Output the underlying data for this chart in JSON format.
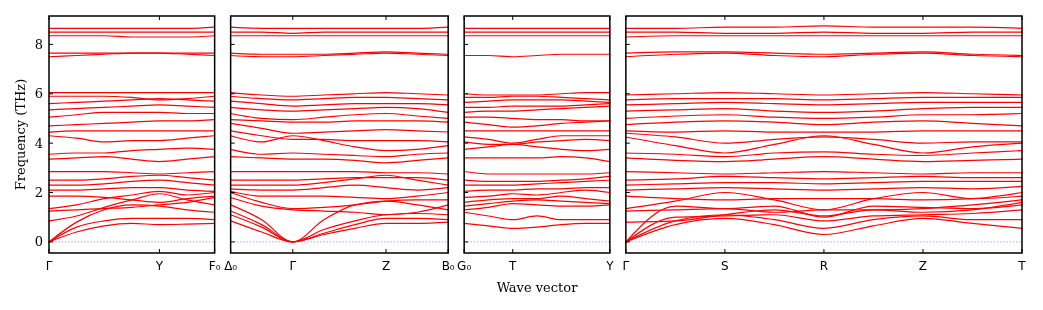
{
  "chart_data": [
    {
      "type": "line",
      "ylabel": "Frequency (THz)",
      "ylim": [
        -0.45,
        9.15
      ],
      "yticks": [
        0,
        2,
        4,
        6,
        8
      ],
      "categories": [
        "Γ",
        null,
        null,
        null,
        "Y",
        null,
        "F₀"
      ],
      "ref_lines": [
        {
          "axis": "y",
          "value": 0,
          "color": "#7777ff",
          "line_style": "dotted"
        }
      ],
      "series": [
        {
          "color": "#ff0000",
          "values": [
            0,
            0.6,
            0.85,
            0.95,
            0.95,
            0.95,
            0.9
          ]
        },
        {
          "color": "#ff0000",
          "values": [
            0,
            0.4,
            0.65,
            0.75,
            0.7,
            0.72,
            0.75
          ]
        },
        {
          "color": "#ff0000",
          "values": [
            0,
            0.8,
            1.3,
            1.5,
            1.45,
            1.3,
            1.2
          ]
        },
        {
          "color": "#ff0000",
          "values": [
            0.85,
            1.05,
            1.4,
            1.7,
            1.95,
            1.7,
            1.5
          ]
        },
        {
          "color": "#ff0000",
          "values": [
            1.25,
            1.3,
            1.35,
            1.4,
            1.5,
            1.6,
            1.8
          ]
        },
        {
          "color": "#ff0000",
          "values": [
            1.35,
            1.5,
            1.75,
            1.9,
            2.05,
            1.9,
            2.0
          ]
        },
        {
          "color": "#ff0000",
          "values": [
            1.85,
            1.85,
            1.8,
            1.7,
            1.6,
            1.75,
            1.85
          ]
        },
        {
          "color": "#ff0000",
          "values": [
            2.1,
            2.1,
            2.15,
            2.2,
            2.2,
            2.1,
            2.05
          ]
        },
        {
          "color": "#ff0000",
          "values": [
            2.3,
            2.3,
            2.35,
            2.45,
            2.5,
            2.4,
            2.3
          ]
        },
        {
          "color": "#ff0000",
          "values": [
            2.5,
            2.5,
            2.55,
            2.65,
            2.7,
            2.6,
            2.5
          ]
        },
        {
          "color": "#ff0000",
          "values": [
            2.85,
            2.85,
            2.85,
            2.8,
            2.75,
            2.8,
            2.85
          ]
        },
        {
          "color": "#ff0000",
          "values": [
            3.35,
            3.4,
            3.45,
            3.35,
            3.25,
            3.35,
            3.45
          ]
        },
        {
          "color": "#ff0000",
          "values": [
            3.55,
            3.6,
            3.6,
            3.7,
            3.75,
            3.8,
            3.75
          ]
        },
        {
          "color": "#ff0000",
          "values": [
            4.3,
            4.2,
            4.05,
            4.1,
            4.1,
            4.2,
            4.3
          ]
        },
        {
          "color": "#ff0000",
          "values": [
            4.45,
            4.5,
            4.5,
            4.5,
            4.5,
            4.5,
            4.5
          ]
        },
        {
          "color": "#ff0000",
          "values": [
            4.7,
            4.75,
            4.8,
            4.85,
            4.9,
            4.9,
            4.95
          ]
        },
        {
          "color": "#ff0000",
          "values": [
            5.05,
            5.15,
            5.25,
            5.25,
            5.25,
            5.2,
            5.2
          ]
        },
        {
          "color": "#ff0000",
          "values": [
            5.35,
            5.4,
            5.45,
            5.5,
            5.55,
            5.5,
            5.45
          ]
        },
        {
          "color": "#ff0000",
          "values": [
            5.6,
            5.65,
            5.7,
            5.75,
            5.8,
            5.75,
            5.7
          ]
        },
        {
          "color": "#ff0000",
          "values": [
            5.9,
            5.9,
            5.9,
            5.85,
            5.75,
            5.8,
            5.9
          ]
        },
        {
          "color": "#ff0000",
          "values": [
            6.05,
            6.05,
            6.05,
            6.05,
            6.05,
            6.05,
            6.05
          ]
        },
        {
          "color": "#ff0000",
          "values": [
            7.5,
            7.55,
            7.6,
            7.65,
            7.65,
            7.6,
            7.55
          ]
        },
        {
          "color": "#ff0000",
          "values": [
            7.65,
            7.65,
            7.65,
            7.65,
            7.65,
            7.65,
            7.65
          ]
        },
        {
          "color": "#ff0000",
          "values": [
            8.35,
            8.35,
            8.35,
            8.3,
            8.3,
            8.3,
            8.35
          ]
        },
        {
          "color": "#ff0000",
          "values": [
            8.5,
            8.5,
            8.5,
            8.5,
            8.5,
            8.5,
            8.5
          ]
        },
        {
          "color": "#ff0000",
          "values": [
            8.65,
            8.65,
            8.65,
            8.65,
            8.65,
            8.65,
            8.7
          ]
        }
      ]
    },
    {
      "type": "line",
      "ylim": [
        -0.45,
        9.15
      ],
      "yticks": [
        0,
        2,
        4,
        6,
        8
      ],
      "tick_labels": "x",
      "categories": [
        "Δ₀",
        null,
        "Γ",
        null,
        null,
        "Z",
        null,
        "B₀"
      ],
      "ref_lines": [
        {
          "axis": "y",
          "value": 0,
          "color": "#7777ff",
          "line_style": "dotted"
        }
      ],
      "series": [
        {
          "color": "#ff0000",
          "values": [
            0.85,
            0.4,
            0,
            0.3,
            0.55,
            0.75,
            0.75,
            0.8
          ]
        },
        {
          "color": "#ff0000",
          "values": [
            1.1,
            0.6,
            0,
            0.35,
            0.7,
            0.95,
            0.95,
            0.9
          ]
        },
        {
          "color": "#ff0000",
          "values": [
            1.25,
            0.7,
            0,
            0.5,
            0.85,
            1.1,
            1.15,
            1.1
          ]
        },
        {
          "color": "#ff0000",
          "values": [
            1.5,
            0.9,
            0,
            0.9,
            1.5,
            1.65,
            1.5,
            1.3
          ]
        },
        {
          "color": "#ff0000",
          "values": [
            1.8,
            1.45,
            1.3,
            1.25,
            1.2,
            1.1,
            1.2,
            1.5
          ]
        },
        {
          "color": "#ff0000",
          "values": [
            2.0,
            1.6,
            1.35,
            1.4,
            1.5,
            1.65,
            1.7,
            1.7
          ]
        },
        {
          "color": "#ff0000",
          "values": [
            2.05,
            1.85,
            1.85,
            1.85,
            1.8,
            1.75,
            1.85,
            2.0
          ]
        },
        {
          "color": "#ff0000",
          "values": [
            2.15,
            2.1,
            2.1,
            2.2,
            2.3,
            2.2,
            2.1,
            2.2
          ]
        },
        {
          "color": "#ff0000",
          "values": [
            2.3,
            2.3,
            2.3,
            2.4,
            2.55,
            2.7,
            2.5,
            2.3
          ]
        },
        {
          "color": "#ff0000",
          "values": [
            2.5,
            2.5,
            2.5,
            2.55,
            2.6,
            2.6,
            2.6,
            2.5
          ]
        },
        {
          "color": "#ff0000",
          "values": [
            2.85,
            2.85,
            2.85,
            2.85,
            2.85,
            2.8,
            2.8,
            2.75
          ]
        },
        {
          "color": "#ff0000",
          "values": [
            3.45,
            3.4,
            3.35,
            3.35,
            3.3,
            3.2,
            3.3,
            3.4
          ]
        },
        {
          "color": "#ff0000",
          "values": [
            3.75,
            3.55,
            3.6,
            3.55,
            3.5,
            3.45,
            3.55,
            3.6
          ]
        },
        {
          "color": "#ff0000",
          "values": [
            4.3,
            4.05,
            4.3,
            4.1,
            3.85,
            3.7,
            3.75,
            3.9
          ]
        },
        {
          "color": "#ff0000",
          "values": [
            4.5,
            4.3,
            4.15,
            4.15,
            4.1,
            4.1,
            4.1,
            4.05
          ]
        },
        {
          "color": "#ff0000",
          "values": [
            4.8,
            4.6,
            4.4,
            4.45,
            4.5,
            4.55,
            4.5,
            4.45
          ]
        },
        {
          "color": "#ff0000",
          "values": [
            4.95,
            4.9,
            4.85,
            4.85,
            4.9,
            4.9,
            4.9,
            4.85
          ]
        },
        {
          "color": "#ff0000",
          "values": [
            5.2,
            5.0,
            4.95,
            5.05,
            5.15,
            5.2,
            5.1,
            5.0
          ]
        },
        {
          "color": "#ff0000",
          "values": [
            5.45,
            5.35,
            5.3,
            5.35,
            5.4,
            5.45,
            5.4,
            5.25
          ]
        },
        {
          "color": "#ff0000",
          "values": [
            5.7,
            5.6,
            5.5,
            5.55,
            5.6,
            5.6,
            5.6,
            5.55
          ]
        },
        {
          "color": "#ff0000",
          "values": [
            5.9,
            5.8,
            5.75,
            5.8,
            5.85,
            5.85,
            5.8,
            5.75
          ]
        },
        {
          "color": "#ff0000",
          "values": [
            6.05,
            5.95,
            5.9,
            5.95,
            6.0,
            6.05,
            6.0,
            5.95
          ]
        },
        {
          "color": "#ff0000",
          "values": [
            7.55,
            7.5,
            7.5,
            7.55,
            7.6,
            7.65,
            7.6,
            7.55
          ]
        },
        {
          "color": "#ff0000",
          "values": [
            7.65,
            7.6,
            7.6,
            7.6,
            7.65,
            7.7,
            7.65,
            7.6
          ]
        },
        {
          "color": "#ff0000",
          "values": [
            8.35,
            8.35,
            8.35,
            8.35,
            8.35,
            8.35,
            8.35,
            8.35
          ]
        },
        {
          "color": "#ff0000",
          "values": [
            8.5,
            8.5,
            8.45,
            8.5,
            8.5,
            8.5,
            8.5,
            8.5
          ]
        },
        {
          "color": "#ff0000",
          "values": [
            8.7,
            8.65,
            8.65,
            8.65,
            8.65,
            8.65,
            8.65,
            8.7
          ]
        }
      ]
    },
    {
      "type": "line",
      "xlabel": "Wave vector",
      "ylim": [
        -0.45,
        9.15
      ],
      "yticks": [
        0,
        2,
        4,
        6,
        8
      ],
      "tick_labels": "x",
      "categories": [
        "G₀",
        null,
        "T",
        null,
        null,
        null,
        "Y"
      ],
      "ref_lines": [
        {
          "axis": "y",
          "value": 0,
          "color": "#7777ff",
          "line_style": "dotted"
        }
      ],
      "series": [
        {
          "color": "#ff0000",
          "values": [
            0.75,
            0.65,
            0.55,
            0.6,
            0.7,
            0.75,
            0.75
          ]
        },
        {
          "color": "#ff0000",
          "values": [
            1.2,
            1.05,
            0.9,
            1.05,
            0.9,
            0.9,
            0.9
          ]
        },
        {
          "color": "#ff0000",
          "values": [
            1.3,
            1.4,
            1.55,
            1.5,
            1.45,
            1.45,
            1.5
          ]
        },
        {
          "color": "#ff0000",
          "values": [
            1.45,
            1.55,
            1.65,
            1.7,
            1.65,
            1.6,
            1.55
          ]
        },
        {
          "color": "#ff0000",
          "values": [
            1.6,
            1.7,
            1.75,
            1.75,
            1.85,
            1.75,
            1.65
          ]
        },
        {
          "color": "#ff0000",
          "values": [
            1.8,
            1.85,
            1.95,
            1.9,
            2.0,
            2.1,
            2.0
          ]
        },
        {
          "color": "#ff0000",
          "values": [
            2.05,
            2.1,
            2.1,
            2.15,
            2.15,
            2.2,
            2.2
          ]
        },
        {
          "color": "#ff0000",
          "values": [
            2.3,
            2.3,
            2.3,
            2.35,
            2.4,
            2.45,
            2.5
          ]
        },
        {
          "color": "#ff0000",
          "values": [
            2.5,
            2.45,
            2.45,
            2.45,
            2.5,
            2.55,
            2.65
          ]
        },
        {
          "color": "#ff0000",
          "values": [
            2.85,
            2.75,
            2.75,
            2.75,
            2.75,
            2.75,
            2.8
          ]
        },
        {
          "color": "#ff0000",
          "values": [
            3.4,
            3.4,
            3.4,
            3.4,
            3.45,
            3.4,
            3.25
          ]
        },
        {
          "color": "#ff0000",
          "values": [
            3.75,
            3.85,
            3.95,
            3.85,
            3.75,
            3.7,
            3.75
          ]
        },
        {
          "color": "#ff0000",
          "values": [
            4.05,
            3.95,
            3.95,
            4.05,
            4.1,
            4.15,
            4.1
          ]
        },
        {
          "color": "#ff0000",
          "values": [
            4.25,
            4.15,
            4.0,
            4.15,
            4.3,
            4.3,
            4.3
          ]
        },
        {
          "color": "#ff0000",
          "values": [
            4.5,
            4.5,
            4.5,
            4.5,
            4.5,
            4.5,
            4.5
          ]
        },
        {
          "color": "#ff0000",
          "values": [
            4.85,
            4.75,
            4.65,
            4.7,
            4.8,
            4.85,
            4.9
          ]
        },
        {
          "color": "#ff0000",
          "values": [
            5.05,
            5.05,
            5.0,
            4.95,
            4.95,
            4.9,
            4.9
          ]
        },
        {
          "color": "#ff0000",
          "values": [
            5.25,
            5.3,
            5.3,
            5.35,
            5.4,
            5.45,
            5.5
          ]
        },
        {
          "color": "#ff0000",
          "values": [
            5.45,
            5.45,
            5.5,
            5.5,
            5.5,
            5.55,
            5.6
          ]
        },
        {
          "color": "#ff0000",
          "values": [
            5.65,
            5.7,
            5.75,
            5.75,
            5.75,
            5.7,
            5.65
          ]
        },
        {
          "color": "#ff0000",
          "values": [
            5.85,
            5.85,
            5.9,
            5.9,
            5.85,
            5.8,
            5.75
          ]
        },
        {
          "color": "#ff0000",
          "values": [
            6.0,
            5.95,
            5.95,
            5.95,
            6.0,
            6.05,
            6.05
          ]
        },
        {
          "color": "#ff0000",
          "values": [
            7.55,
            7.55,
            7.5,
            7.55,
            7.6,
            7.6,
            7.6
          ]
        },
        {
          "color": "#ff0000",
          "values": [
            8.35,
            8.35,
            8.35,
            8.35,
            8.35,
            8.35,
            8.35
          ]
        },
        {
          "color": "#ff0000",
          "values": [
            8.5,
            8.5,
            8.5,
            8.5,
            8.5,
            8.5,
            8.5
          ]
        },
        {
          "color": "#ff0000",
          "values": [
            8.65,
            8.65,
            8.65,
            8.65,
            8.65,
            8.65,
            8.65
          ]
        }
      ]
    },
    {
      "type": "line",
      "ylim": [
        -0.45,
        9.15
      ],
      "yticks": [
        0,
        2,
        4,
        6,
        8
      ],
      "tick_labels": "x",
      "categories": [
        "Γ",
        null,
        "S",
        null,
        "R",
        null,
        "Z",
        null,
        "T"
      ],
      "ref_lines": [
        {
          "axis": "y",
          "value": 0,
          "color": "#7777ff",
          "line_style": "dotted"
        }
      ],
      "series": [
        {
          "color": "#ff0000",
          "values": [
            0,
            0.7,
            0.95,
            0.7,
            0.3,
            0.65,
            0.95,
            0.75,
            0.55
          ]
        },
        {
          "color": "#ff0000",
          "values": [
            0,
            0.85,
            1.1,
            0.9,
            0.55,
            0.9,
            1.05,
            0.9,
            0.9
          ]
        },
        {
          "color": "#ff0000",
          "values": [
            0,
            1.0,
            1.05,
            1.1,
            0.85,
            1.05,
            1.1,
            1.15,
            1.3
          ]
        },
        {
          "color": "#ff0000",
          "values": [
            0,
            1.45,
            1.35,
            1.45,
            1.0,
            1.45,
            1.4,
            1.35,
            1.5
          ]
        },
        {
          "color": "#ff0000",
          "values": [
            0.8,
            0.85,
            1.1,
            1.3,
            1.05,
            1.3,
            1.2,
            1.3,
            1.6
          ]
        },
        {
          "color": "#ff0000",
          "values": [
            1.25,
            1.3,
            1.35,
            1.2,
            1.3,
            1.3,
            1.35,
            1.5,
            1.7
          ]
        },
        {
          "color": "#ff0000",
          "values": [
            1.35,
            1.65,
            2.0,
            1.7,
            1.3,
            1.75,
            2.0,
            1.75,
            1.85
          ]
        },
        {
          "color": "#ff0000",
          "values": [
            1.85,
            1.75,
            1.7,
            1.75,
            1.75,
            1.75,
            1.7,
            1.75,
            2.0
          ]
        },
        {
          "color": "#ff0000",
          "values": [
            2.1,
            2.15,
            2.2,
            2.15,
            2.1,
            2.15,
            2.2,
            2.15,
            2.25
          ]
        },
        {
          "color": "#ff0000",
          "values": [
            2.3,
            2.35,
            2.4,
            2.4,
            2.35,
            2.4,
            2.45,
            2.45,
            2.45
          ]
        },
        {
          "color": "#ff0000",
          "values": [
            2.5,
            2.55,
            2.65,
            2.6,
            2.55,
            2.6,
            2.65,
            2.6,
            2.6
          ]
        },
        {
          "color": "#ff0000",
          "values": [
            2.85,
            2.8,
            2.75,
            2.8,
            2.85,
            2.8,
            2.75,
            2.8,
            2.8
          ]
        },
        {
          "color": "#ff0000",
          "values": [
            3.4,
            3.3,
            3.25,
            3.35,
            3.45,
            3.35,
            3.25,
            3.3,
            3.35
          ]
        },
        {
          "color": "#ff0000",
          "values": [
            3.6,
            3.55,
            3.45,
            3.6,
            3.65,
            3.55,
            3.5,
            3.6,
            3.7
          ]
        },
        {
          "color": "#ff0000",
          "values": [
            4.25,
            3.9,
            3.6,
            3.95,
            4.3,
            3.95,
            3.6,
            3.85,
            4.0
          ]
        },
        {
          "color": "#ff0000",
          "values": [
            4.4,
            4.25,
            4.0,
            4.15,
            4.25,
            4.15,
            4.0,
            4.05,
            4.05
          ]
        },
        {
          "color": "#ff0000",
          "values": [
            4.5,
            4.45,
            4.5,
            4.45,
            4.45,
            4.45,
            4.5,
            4.5,
            4.5
          ]
        },
        {
          "color": "#ff0000",
          "values": [
            4.75,
            4.85,
            4.9,
            4.85,
            4.75,
            4.85,
            4.9,
            4.8,
            4.7
          ]
        },
        {
          "color": "#ff0000",
          "values": [
            5.0,
            5.1,
            5.15,
            5.05,
            5.0,
            5.05,
            5.15,
            5.15,
            5.2
          ]
        },
        {
          "color": "#ff0000",
          "values": [
            5.3,
            5.35,
            5.4,
            5.3,
            5.25,
            5.3,
            5.4,
            5.45,
            5.45
          ]
        },
        {
          "color": "#ff0000",
          "values": [
            5.55,
            5.6,
            5.65,
            5.6,
            5.55,
            5.6,
            5.65,
            5.65,
            5.65
          ]
        },
        {
          "color": "#ff0000",
          "values": [
            5.75,
            5.8,
            5.8,
            5.8,
            5.75,
            5.8,
            5.85,
            5.85,
            5.85
          ]
        },
        {
          "color": "#ff0000",
          "values": [
            5.95,
            6.0,
            6.05,
            6.0,
            5.95,
            6.0,
            6.05,
            6.0,
            5.95
          ]
        },
        {
          "color": "#ff0000",
          "values": [
            7.5,
            7.6,
            7.65,
            7.55,
            7.5,
            7.6,
            7.65,
            7.55,
            7.5
          ]
        },
        {
          "color": "#ff0000",
          "values": [
            7.65,
            7.7,
            7.7,
            7.65,
            7.6,
            7.65,
            7.7,
            7.6,
            7.55
          ]
        },
        {
          "color": "#ff0000",
          "values": [
            8.3,
            8.35,
            8.35,
            8.35,
            8.35,
            8.35,
            8.35,
            8.35,
            8.35
          ]
        },
        {
          "color": "#ff0000",
          "values": [
            8.5,
            8.5,
            8.45,
            8.45,
            8.5,
            8.45,
            8.45,
            8.5,
            8.5
          ]
        },
        {
          "color": "#ff0000",
          "values": [
            8.65,
            8.65,
            8.7,
            8.7,
            8.75,
            8.7,
            8.7,
            8.7,
            8.65
          ]
        }
      ]
    }
  ]
}
